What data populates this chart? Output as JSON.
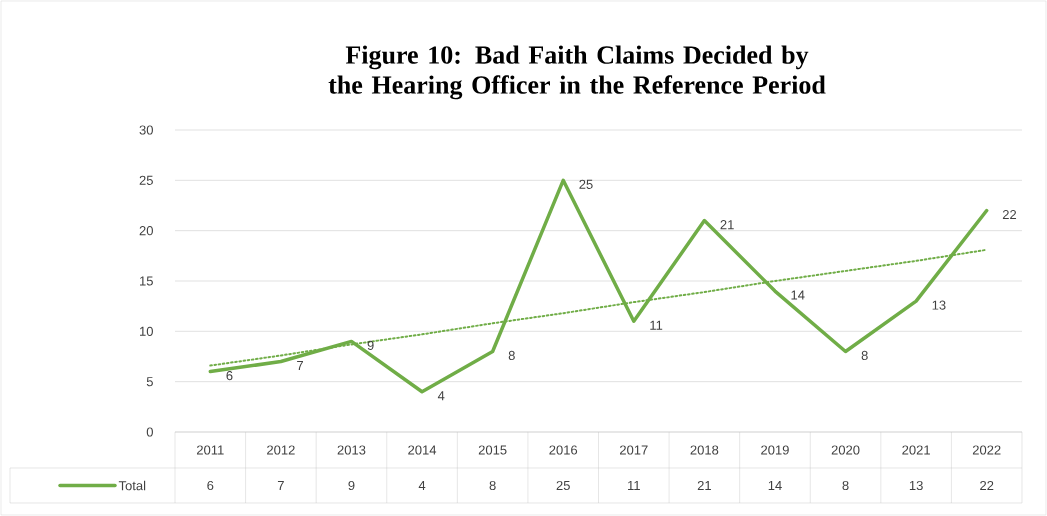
{
  "chart_data": {
    "type": "line",
    "title": "Figure 10: Bad Faith Claims Decided by the Hearing Officer in the Reference Period",
    "categories": [
      "2011",
      "2012",
      "2013",
      "2014",
      "2015",
      "2016",
      "2017",
      "2018",
      "2019",
      "2020",
      "2021",
      "2022"
    ],
    "series": [
      {
        "name": "Total",
        "color": "#70ad47",
        "values": [
          6,
          7,
          9,
          4,
          8,
          25,
          11,
          21,
          14,
          8,
          13,
          22
        ],
        "value_labels": [
          "6",
          "7",
          "9",
          "4",
          "8",
          "25",
          "11",
          "21",
          "14",
          "8",
          "13",
          "22"
        ]
      },
      {
        "color": "#70ad47",
        "line_style": "dotted",
        "values": [
          6.6,
          7.6,
          8.7,
          9.7,
          10.8,
          11.8,
          12.9,
          13.9,
          15.0,
          16.0,
          17.0,
          18.1
        ]
      }
    ],
    "ylim": [
      0,
      30
    ],
    "yticks": [
      0,
      5,
      10,
      15,
      20,
      25,
      30
    ],
    "grid": "y",
    "legend": "bottom",
    "marker": "none"
  }
}
